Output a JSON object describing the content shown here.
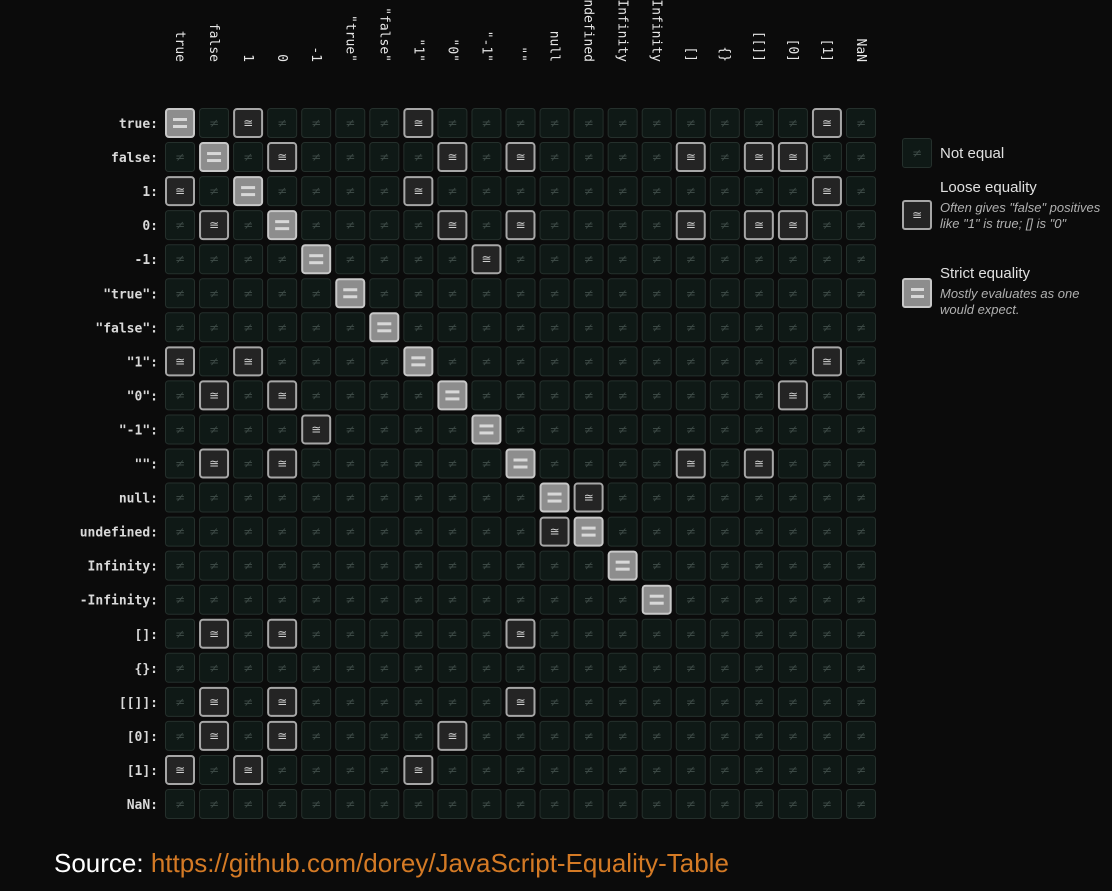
{
  "chart_data": {
    "type": "heatmap",
    "labels": [
      "true",
      "false",
      "1",
      "0",
      "-1",
      "\"true\"",
      "\"false\"",
      "\"1\"",
      "\"0\"",
      "\"-1\"",
      "\"\"",
      "null",
      "undefined",
      "Infinity",
      "-Infinity",
      "[]",
      "{}",
      "[[]]",
      "[0]",
      "[1]",
      "NaN"
    ],
    "legend": {
      "none": "Not equal",
      "loose": "Loose equality",
      "loose_desc": "Often gives \"false\" positives like \"1\" is true; [] is \"0\"",
      "strict": "Strict equality",
      "strict_desc": "Mostly evaluates as one would expect."
    },
    "cell_codes": {
      "0": "Not equal",
      "1": "Loose equality",
      "2": "Strict equality"
    },
    "matrix": [
      [
        2,
        0,
        1,
        0,
        0,
        0,
        0,
        1,
        0,
        0,
        0,
        0,
        0,
        0,
        0,
        0,
        0,
        0,
        0,
        1,
        0
      ],
      [
        0,
        2,
        0,
        1,
        0,
        0,
        0,
        0,
        1,
        0,
        1,
        0,
        0,
        0,
        0,
        1,
        0,
        1,
        1,
        0,
        0
      ],
      [
        1,
        0,
        2,
        0,
        0,
        0,
        0,
        1,
        0,
        0,
        0,
        0,
        0,
        0,
        0,
        0,
        0,
        0,
        0,
        1,
        0
      ],
      [
        0,
        1,
        0,
        2,
        0,
        0,
        0,
        0,
        1,
        0,
        1,
        0,
        0,
        0,
        0,
        1,
        0,
        1,
        1,
        0,
        0
      ],
      [
        0,
        0,
        0,
        0,
        2,
        0,
        0,
        0,
        0,
        1,
        0,
        0,
        0,
        0,
        0,
        0,
        0,
        0,
        0,
        0,
        0
      ],
      [
        0,
        0,
        0,
        0,
        0,
        2,
        0,
        0,
        0,
        0,
        0,
        0,
        0,
        0,
        0,
        0,
        0,
        0,
        0,
        0,
        0
      ],
      [
        0,
        0,
        0,
        0,
        0,
        0,
        2,
        0,
        0,
        0,
        0,
        0,
        0,
        0,
        0,
        0,
        0,
        0,
        0,
        0,
        0
      ],
      [
        1,
        0,
        1,
        0,
        0,
        0,
        0,
        2,
        0,
        0,
        0,
        0,
        0,
        0,
        0,
        0,
        0,
        0,
        0,
        1,
        0
      ],
      [
        0,
        1,
        0,
        1,
        0,
        0,
        0,
        0,
        2,
        0,
        0,
        0,
        0,
        0,
        0,
        0,
        0,
        0,
        1,
        0,
        0
      ],
      [
        0,
        0,
        0,
        0,
        1,
        0,
        0,
        0,
        0,
        2,
        0,
        0,
        0,
        0,
        0,
        0,
        0,
        0,
        0,
        0,
        0
      ],
      [
        0,
        1,
        0,
        1,
        0,
        0,
        0,
        0,
        0,
        0,
        2,
        0,
        0,
        0,
        0,
        1,
        0,
        1,
        0,
        0,
        0
      ],
      [
        0,
        0,
        0,
        0,
        0,
        0,
        0,
        0,
        0,
        0,
        0,
        2,
        1,
        0,
        0,
        0,
        0,
        0,
        0,
        0,
        0
      ],
      [
        0,
        0,
        0,
        0,
        0,
        0,
        0,
        0,
        0,
        0,
        0,
        1,
        2,
        0,
        0,
        0,
        0,
        0,
        0,
        0,
        0
      ],
      [
        0,
        0,
        0,
        0,
        0,
        0,
        0,
        0,
        0,
        0,
        0,
        0,
        0,
        2,
        0,
        0,
        0,
        0,
        0,
        0,
        0
      ],
      [
        0,
        0,
        0,
        0,
        0,
        0,
        0,
        0,
        0,
        0,
        0,
        0,
        0,
        0,
        2,
        0,
        0,
        0,
        0,
        0,
        0
      ],
      [
        0,
        1,
        0,
        1,
        0,
        0,
        0,
        0,
        0,
        0,
        1,
        0,
        0,
        0,
        0,
        0,
        0,
        0,
        0,
        0,
        0
      ],
      [
        0,
        0,
        0,
        0,
        0,
        0,
        0,
        0,
        0,
        0,
        0,
        0,
        0,
        0,
        0,
        0,
        0,
        0,
        0,
        0,
        0
      ],
      [
        0,
        1,
        0,
        1,
        0,
        0,
        0,
        0,
        0,
        0,
        1,
        0,
        0,
        0,
        0,
        0,
        0,
        0,
        0,
        0,
        0
      ],
      [
        0,
        1,
        0,
        1,
        0,
        0,
        0,
        0,
        1,
        0,
        0,
        0,
        0,
        0,
        0,
        0,
        0,
        0,
        0,
        0,
        0
      ],
      [
        1,
        0,
        1,
        0,
        0,
        0,
        0,
        1,
        0,
        0,
        0,
        0,
        0,
        0,
        0,
        0,
        0,
        0,
        0,
        0,
        0
      ],
      [
        0,
        0,
        0,
        0,
        0,
        0,
        0,
        0,
        0,
        0,
        0,
        0,
        0,
        0,
        0,
        0,
        0,
        0,
        0,
        0,
        0
      ]
    ]
  },
  "source": {
    "label": "Source:",
    "url": "https://github.com/dorey/JavaScript-Equality-Table"
  },
  "colors": {
    "background": "#0b0b0b",
    "cell_none": "#0f1916",
    "cell_none_border": "#25302c",
    "cell_loose": "#242424",
    "cell_loose_border": "#a7a7a7",
    "cell_strict": "#8d8d8d",
    "cell_strict_border": "#c8c8c8",
    "link": "#d47a25"
  },
  "icons": {
    "not_equal": "not-equal-icon",
    "loose": "approx-equal-icon",
    "strict": "equal-bars-icon"
  }
}
